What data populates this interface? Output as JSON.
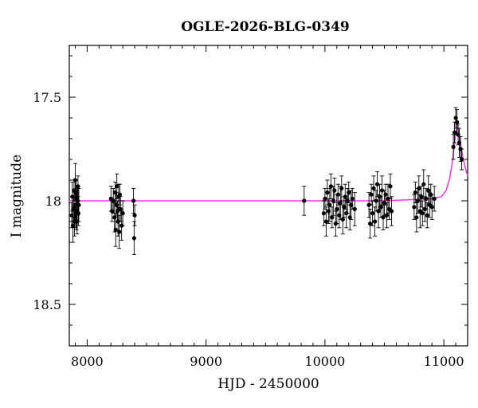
{
  "chart_data": {
    "type": "scatter",
    "title": "OGLE-2026-BLG-0349",
    "xlabel": "HJD - 2450000",
    "ylabel": "I magnitude",
    "xlim": [
      7850,
      11200
    ],
    "ylim": [
      18.7,
      17.25
    ],
    "y_axis_inverted": true,
    "x_ticks": [
      8000,
      9000,
      10000,
      11000
    ],
    "x_tick_labels": [
      "8000",
      "9000",
      "10000",
      "11000"
    ],
    "y_ticks": [
      17.5,
      18,
      18.5
    ],
    "y_tick_labels": [
      "17.5",
      "18",
      "18.5"
    ],
    "grid": false,
    "colors": {
      "points": "#000000",
      "model": "#ee33ee",
      "axes": "#000000"
    },
    "series": [
      {
        "kind": "observations",
        "points": [
          [
            7870,
            18.07,
            0.06
          ],
          [
            7875,
            17.98,
            0.07
          ],
          [
            7880,
            18.12,
            0.08
          ],
          [
            7885,
            18.04,
            0.06
          ],
          [
            7890,
            17.95,
            0.05
          ],
          [
            7893,
            18.1,
            0.07
          ],
          [
            7897,
            18.02,
            0.06
          ],
          [
            7900,
            17.9,
            0.08
          ],
          [
            7903,
            18.08,
            0.05
          ],
          [
            7906,
            17.96,
            0.06
          ],
          [
            7910,
            18.05,
            0.09
          ],
          [
            7913,
            17.99,
            0.05
          ],
          [
            7916,
            18.1,
            0.06
          ],
          [
            7920,
            18.0,
            0.07
          ],
          [
            7923,
            17.93,
            0.05
          ],
          [
            7926,
            18.06,
            0.06
          ],
          [
            7930,
            18.02,
            0.08
          ],
          [
            8200,
            17.99,
            0.06
          ],
          [
            8210,
            18.05,
            0.05
          ],
          [
            8220,
            18.0,
            0.06
          ],
          [
            8230,
            18.08,
            0.07
          ],
          [
            8235,
            17.96,
            0.05
          ],
          [
            8240,
            18.14,
            0.08
          ],
          [
            8245,
            18.02,
            0.06
          ],
          [
            8250,
            17.93,
            0.06
          ],
          [
            8255,
            18.05,
            0.05
          ],
          [
            8260,
            18.1,
            0.07
          ],
          [
            8265,
            17.98,
            0.06
          ],
          [
            8270,
            18.15,
            0.08
          ],
          [
            8275,
            17.97,
            0.05
          ],
          [
            8280,
            18.04,
            0.06
          ],
          [
            8290,
            18.12,
            0.07
          ],
          [
            8300,
            18.06,
            0.06
          ],
          [
            8390,
            18.0,
            0.06
          ],
          [
            8395,
            18.18,
            0.08
          ],
          [
            8400,
            18.07,
            0.05
          ],
          [
            9825,
            18.0,
            0.07
          ],
          [
            9990,
            18.06,
            0.06
          ],
          [
            10000,
            17.99,
            0.05
          ],
          [
            10010,
            18.1,
            0.07
          ],
          [
            10020,
            17.96,
            0.06
          ],
          [
            10030,
            18.05,
            0.06
          ],
          [
            10040,
            18.02,
            0.08
          ],
          [
            10050,
            17.93,
            0.06
          ],
          [
            10060,
            18.08,
            0.05
          ],
          [
            10070,
            18.0,
            0.07
          ],
          [
            10080,
            17.95,
            0.06
          ],
          [
            10090,
            18.11,
            0.06
          ],
          [
            10100,
            18.04,
            0.07
          ],
          [
            10110,
            17.97,
            0.05
          ],
          [
            10120,
            18.07,
            0.06
          ],
          [
            10130,
            18.01,
            0.08
          ],
          [
            10140,
            17.94,
            0.06
          ],
          [
            10150,
            18.09,
            0.07
          ],
          [
            10160,
            18.03,
            0.05
          ],
          [
            10170,
            17.98,
            0.06
          ],
          [
            10180,
            18.06,
            0.07
          ],
          [
            10190,
            18.0,
            0.06
          ],
          [
            10200,
            17.96,
            0.05
          ],
          [
            10210,
            18.08,
            0.06
          ],
          [
            10220,
            18.02,
            0.07
          ],
          [
            10230,
            17.99,
            0.05
          ],
          [
            10250,
            18.04,
            0.08
          ],
          [
            10370,
            18.02,
            0.06
          ],
          [
            10380,
            18.11,
            0.07
          ],
          [
            10390,
            17.97,
            0.05
          ],
          [
            10400,
            18.06,
            0.06
          ],
          [
            10410,
            17.94,
            0.06
          ],
          [
            10420,
            18.1,
            0.07
          ],
          [
            10430,
            18.0,
            0.05
          ],
          [
            10440,
            17.92,
            0.06
          ],
          [
            10450,
            18.05,
            0.08
          ],
          [
            10460,
            17.98,
            0.06
          ],
          [
            10470,
            18.03,
            0.05
          ],
          [
            10480,
            17.95,
            0.07
          ],
          [
            10490,
            18.08,
            0.06
          ],
          [
            10500,
            18.01,
            0.06
          ],
          [
            10510,
            17.97,
            0.05
          ],
          [
            10520,
            18.07,
            0.06
          ],
          [
            10530,
            17.99,
            0.07
          ],
          [
            10540,
            18.04,
            0.05
          ],
          [
            10550,
            17.93,
            0.06
          ],
          [
            10560,
            18.05,
            0.07
          ],
          [
            10750,
            18.03,
            0.06
          ],
          [
            10760,
            17.96,
            0.05
          ],
          [
            10770,
            18.08,
            0.07
          ],
          [
            10780,
            18.0,
            0.06
          ],
          [
            10790,
            17.94,
            0.06
          ],
          [
            10800,
            18.05,
            0.08
          ],
          [
            10810,
            17.98,
            0.05
          ],
          [
            10820,
            18.06,
            0.06
          ],
          [
            10830,
            17.92,
            0.07
          ],
          [
            10840,
            18.04,
            0.06
          ],
          [
            10850,
            17.99,
            0.05
          ],
          [
            10860,
            18.07,
            0.06
          ],
          [
            10870,
            17.95,
            0.07
          ],
          [
            10880,
            18.02,
            0.06
          ],
          [
            10890,
            17.97,
            0.05
          ],
          [
            10900,
            18.03,
            0.06
          ],
          [
            10920,
            17.99,
            0.06
          ],
          [
            11080,
            17.74,
            0.06
          ],
          [
            11090,
            17.67,
            0.05
          ],
          [
            11100,
            17.6,
            0.05
          ],
          [
            11110,
            17.62,
            0.06
          ],
          [
            11120,
            17.68,
            0.05
          ],
          [
            11130,
            17.72,
            0.07
          ],
          [
            11140,
            17.75,
            0.06
          ],
          [
            11150,
            17.8,
            0.05
          ]
        ]
      },
      {
        "kind": "model",
        "points": [
          [
            7850,
            18.0
          ],
          [
            10500,
            18.0
          ],
          [
            10900,
            17.99
          ],
          [
            10980,
            17.98
          ],
          [
            11020,
            17.95
          ],
          [
            11050,
            17.89
          ],
          [
            11070,
            17.82
          ],
          [
            11090,
            17.72
          ],
          [
            11105,
            17.66
          ],
          [
            11115,
            17.64
          ],
          [
            11125,
            17.66
          ],
          [
            11140,
            17.72
          ],
          [
            11160,
            17.79
          ],
          [
            11180,
            17.84
          ],
          [
            11200,
            17.88
          ]
        ]
      }
    ]
  }
}
